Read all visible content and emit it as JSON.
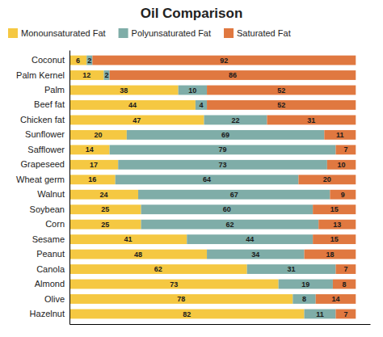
{
  "chart_data": {
    "type": "bar",
    "orientation": "horizontal",
    "stacked": true,
    "title": "Oil Comparison",
    "categories": [
      "Coconut",
      "Palm Kernel",
      "Palm",
      "Beef fat",
      "Chicken fat",
      "Sunflower",
      "Safflower",
      "Grapeseed",
      "Wheat germ",
      "Walnut",
      "Soybean",
      "Corn",
      "Sesame",
      "Peanut",
      "Canola",
      "Almond",
      "Olive",
      "Hazelnut"
    ],
    "series": [
      {
        "name": "Monounsaturated Fat",
        "color": "#F5C842",
        "values": [
          6,
          12,
          38,
          44,
          47,
          20,
          14,
          17,
          16,
          24,
          25,
          25,
          41,
          48,
          62,
          73,
          78,
          82
        ]
      },
      {
        "name": "Polyunsaturated Fat",
        "color": "#7FADA8",
        "values": [
          2,
          2,
          10,
          4,
          22,
          69,
          79,
          73,
          64,
          67,
          60,
          62,
          44,
          34,
          31,
          19,
          8,
          11
        ]
      },
      {
        "name": "Saturated Fat",
        "color": "#E07840",
        "values": [
          92,
          86,
          52,
          52,
          31,
          11,
          7,
          10,
          20,
          9,
          15,
          13,
          15,
          18,
          7,
          8,
          14,
          7
        ]
      }
    ],
    "xlim": [
      0,
      105
    ],
    "data_labels": true,
    "tick_labels": "y",
    "legend": "top",
    "grid": false
  }
}
